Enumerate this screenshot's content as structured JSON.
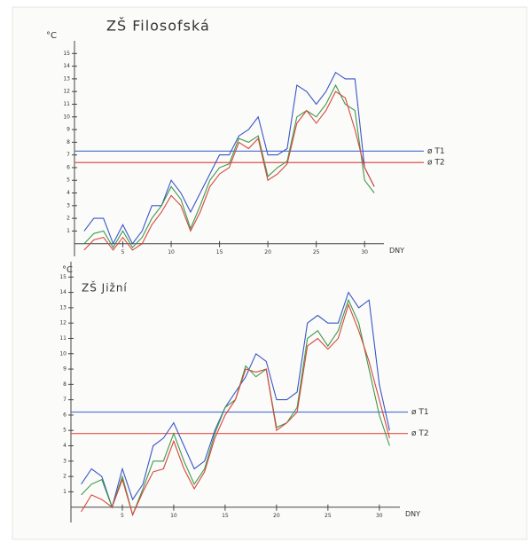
{
  "chart_data": [
    {
      "type": "line",
      "title": "ZŠ Filosofská",
      "ylabel": "°C",
      "xlabel": "DNY",
      "x": [
        1,
        2,
        3,
        4,
        5,
        6,
        7,
        8,
        9,
        10,
        11,
        12,
        13,
        14,
        15,
        16,
        17,
        18,
        19,
        20,
        21,
        22,
        23,
        24,
        25,
        26,
        27,
        28,
        29,
        30,
        31
      ],
      "series": [
        {
          "color": "#3a55c8",
          "values": [
            1,
            2,
            2,
            0,
            1.5,
            0,
            1,
            3,
            3,
            5,
            4,
            2.5,
            4,
            5.5,
            7,
            7,
            8.5,
            9,
            10,
            7,
            7,
            7.5,
            12.5,
            12,
            11,
            12,
            13.5,
            13,
            13,
            6,
            4.5
          ]
        },
        {
          "color": "#3a9a4a",
          "values": [
            0,
            0.8,
            1,
            -0.3,
            1,
            -0.3,
            0.5,
            2,
            3,
            4.5,
            3.5,
            1.2,
            3,
            5,
            6,
            6.3,
            8.3,
            8,
            8.5,
            5.3,
            6,
            6.5,
            10,
            10.5,
            10,
            11,
            12.5,
            11,
            10.5,
            5,
            4
          ]
        },
        {
          "color": "#d8453a",
          "values": [
            -0.5,
            0.3,
            0.5,
            -0.5,
            0.5,
            -0.5,
            0,
            1.5,
            2.5,
            3.8,
            3,
            1,
            2.5,
            4.5,
            5.5,
            6,
            8,
            7.5,
            8.3,
            5,
            5.5,
            6.3,
            9.5,
            10.5,
            9.5,
            10.5,
            12,
            11.5,
            9,
            6,
            4.5
          ]
        }
      ],
      "reference_lines": [
        {
          "label": "ø T1",
          "value": 7.3,
          "color": "#5a78d8"
        },
        {
          "label": "ø T2",
          "value": 6.4,
          "color": "#e0504a"
        }
      ],
      "xlim": [
        0,
        32
      ],
      "ylim": [
        -1,
        16
      ],
      "xticks": [
        5,
        10,
        15,
        20,
        25,
        30
      ],
      "yticks": [
        1,
        2,
        3,
        4,
        5,
        6,
        7,
        8,
        9,
        10,
        11,
        12,
        13,
        14,
        15
      ]
    },
    {
      "type": "line",
      "title": "ZŠ Jižní",
      "ylabel": "°C",
      "xlabel": "DNY",
      "x": [
        1,
        2,
        3,
        4,
        5,
        6,
        7,
        8,
        9,
        10,
        11,
        12,
        13,
        14,
        15,
        16,
        17,
        18,
        19,
        20,
        21,
        22,
        23,
        24,
        25,
        26,
        27,
        28,
        29,
        30,
        31
      ],
      "series": [
        {
          "color": "#3a55c8",
          "values": [
            1.5,
            2.5,
            2,
            0,
            2.5,
            0.5,
            1.5,
            4,
            4.5,
            5.5,
            4,
            2.5,
            3,
            5,
            6.5,
            7.5,
            8.5,
            10,
            9.5,
            7,
            7,
            7.5,
            12,
            12.5,
            12,
            12,
            14,
            13,
            13.5,
            8,
            5
          ]
        },
        {
          "color": "#3a9a4a",
          "values": [
            0.8,
            1.5,
            1.8,
            0,
            2,
            -0.5,
            1.2,
            3,
            3,
            4.8,
            3,
            1.5,
            2.5,
            4.8,
            6.5,
            7,
            9.2,
            8.5,
            9,
            5.2,
            5.5,
            6.5,
            11,
            11.5,
            10.5,
            11.5,
            13.5,
            12,
            9,
            6,
            4
          ]
        },
        {
          "color": "#d8453a",
          "values": [
            -0.3,
            0.8,
            0.5,
            0,
            1.8,
            -0.5,
            1,
            2.3,
            2.5,
            4.3,
            2.5,
            1.2,
            2.3,
            4.5,
            6,
            7,
            9,
            8.8,
            9,
            5,
            5.5,
            6.2,
            10.5,
            11,
            10.3,
            11,
            13.2,
            11.5,
            9.5,
            7,
            4.5
          ]
        }
      ],
      "reference_lines": [
        {
          "label": "ø T1",
          "value": 6.2,
          "color": "#5a78d8"
        },
        {
          "label": "ø T2",
          "value": 4.8,
          "color": "#e0504a"
        }
      ],
      "xlim": [
        0,
        32
      ],
      "ylim": [
        -1,
        16
      ],
      "xticks": [
        5,
        10,
        15,
        20,
        25,
        30
      ],
      "yticks": [
        1,
        2,
        3,
        4,
        5,
        6,
        7,
        8,
        9,
        10,
        11,
        12,
        13,
        14,
        15
      ]
    }
  ]
}
